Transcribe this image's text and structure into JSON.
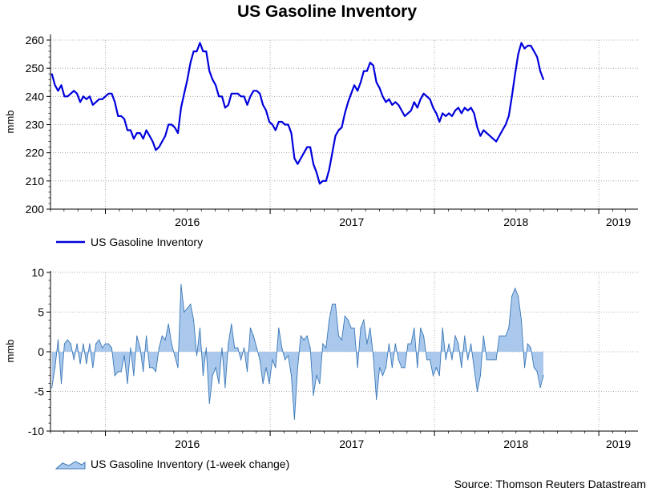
{
  "title": "US Gasoline Inventory",
  "source": "Source: Thomson Reuters Datastream",
  "colors": {
    "line": "#0000dd",
    "area_fill": "#a9c8ec",
    "area_stroke": "#3a78b8",
    "grid": "#999999"
  },
  "chart_data": [
    {
      "type": "line",
      "ylabel": "mmb",
      "ylim": [
        200,
        260
      ],
      "yticks": [
        200,
        210,
        220,
        230,
        240,
        250,
        260
      ],
      "x_tick_labels": [
        "2016",
        "2017",
        "2018",
        "2019"
      ],
      "legend": "bottom-left",
      "grid": true,
      "series": [
        {
          "name": "US Gasoline Inventory",
          "x_start": "2015-09-04",
          "x_step_days": 7,
          "values": [
            248,
            244,
            242,
            244,
            240,
            240,
            241,
            242,
            241,
            238,
            240,
            239,
            240,
            237,
            238,
            239,
            239,
            240,
            241,
            241,
            238,
            233,
            233,
            232,
            228,
            228,
            225,
            227,
            227,
            225,
            228,
            226,
            224,
            221,
            222,
            224,
            226,
            230,
            230,
            229,
            227,
            236,
            241,
            246,
            252,
            256,
            256,
            259,
            256,
            256,
            249,
            246,
            244,
            240,
            240,
            236,
            237,
            241,
            241,
            241,
            240,
            240,
            237,
            240,
            242,
            242,
            241,
            237,
            235,
            231,
            230,
            228,
            231,
            231,
            230,
            230,
            227,
            218,
            216,
            218,
            220,
            222,
            222,
            216,
            213,
            209,
            210,
            210,
            214,
            220,
            226,
            228,
            229,
            234,
            238,
            241,
            244,
            242,
            245,
            249,
            249,
            252,
            251,
            245,
            243,
            240,
            238,
            239,
            237,
            238,
            237,
            235,
            233,
            234,
            235,
            238,
            236,
            239,
            241,
            240,
            239,
            236,
            234,
            231,
            234,
            233,
            234,
            233,
            235,
            236,
            234,
            236,
            235,
            236,
            234,
            229,
            226,
            228,
            227,
            226,
            225,
            224,
            226,
            228,
            230,
            233,
            240,
            248,
            255,
            259,
            257,
            258,
            258,
            256,
            254,
            249,
            246
          ]
        }
      ]
    },
    {
      "type": "area",
      "ylabel": "mmb",
      "ylim": [
        -10,
        10
      ],
      "yticks": [
        -10,
        -5,
        0,
        5,
        10
      ],
      "x_tick_labels": [
        "2016",
        "2017",
        "2018",
        "2019"
      ],
      "legend": "bottom-left",
      "grid": true,
      "series": [
        {
          "name": "US Gasoline Inventory (1-week change)",
          "x_start": "2015-09-04",
          "x_step_days": 7,
          "values": [
            -4.5,
            -2,
            1.5,
            -4,
            1,
            1.5,
            1,
            -1,
            1,
            -1.5,
            1,
            -1.5,
            1,
            -2,
            1,
            1.5,
            0.5,
            1,
            1,
            0.5,
            -3,
            -2.5,
            -2.5,
            -0.5,
            -4,
            0.5,
            -3,
            2,
            0.5,
            -2.5,
            2,
            -2,
            -2,
            -2.5,
            0.5,
            2,
            1.5,
            3.5,
            1,
            -0.5,
            -2,
            8.5,
            5,
            5.5,
            6,
            4,
            -0.5,
            3,
            -3,
            0.5,
            -6.5,
            -3,
            -2,
            -4,
            0.5,
            -4.5,
            1,
            3.5,
            0.5,
            0.5,
            -1,
            0.5,
            -2.5,
            3,
            2,
            0.5,
            -1,
            -4,
            -2,
            -4,
            -1,
            -2,
            3,
            0.5,
            -1,
            -0.5,
            -3,
            -8.5,
            -2,
            2,
            1.5,
            2,
            0.5,
            -5.5,
            -3,
            -4,
            1,
            0.5,
            4,
            6,
            6,
            2,
            1.5,
            4.5,
            4,
            3,
            3,
            -2,
            3,
            4,
            1,
            3,
            -0.5,
            -6,
            -2,
            -3,
            -2,
            1,
            -2,
            1,
            -1,
            -2,
            -2,
            1,
            1,
            3,
            -2,
            3,
            2,
            -1,
            -1,
            -3,
            -2,
            -3,
            3,
            -1,
            1,
            -1,
            2,
            1,
            -2,
            2,
            -1,
            1,
            -2,
            -5,
            -3,
            2,
            -1,
            -1,
            -1,
            -1,
            2,
            2,
            2,
            3,
            7,
            8,
            7,
            4,
            -2,
            1,
            0.5,
            -2,
            -2.5,
            -4.5,
            -3
          ]
        }
      ]
    }
  ]
}
